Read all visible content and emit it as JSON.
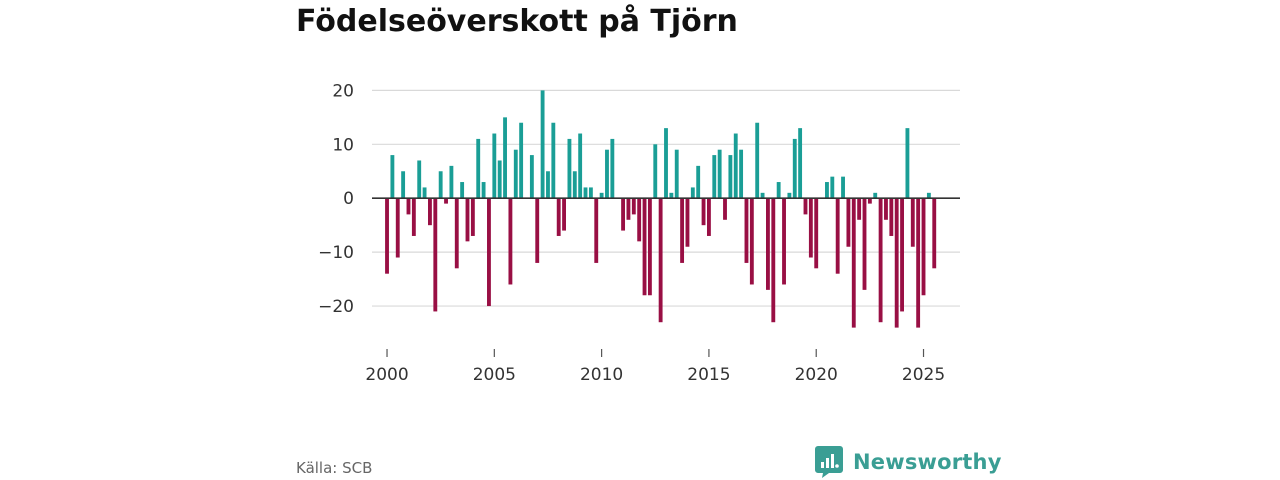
{
  "title": "Födelseöverskott på Tjörn",
  "source": "Källa: SCB",
  "brand": {
    "name": "Newsworthy",
    "icon": "newsworthy-logo-icon"
  },
  "colors": {
    "positive": "#1a9e96",
    "negative": "#990f44",
    "grid": "#d9d9d9",
    "zero_line": "#333333"
  },
  "chart_data": {
    "type": "bar",
    "title": "Födelseöverskott på Tjörn",
    "xlabel": "",
    "ylabel": "",
    "frequency": "quarterly",
    "x_start": 2000.0,
    "x_step": 0.25,
    "xlim": [
      1999.3,
      2026.7
    ],
    "ylim": [
      -25,
      21
    ],
    "yticks": [
      20,
      10,
      0,
      -10,
      -20
    ],
    "ytick_labels": [
      "20",
      "10",
      "0",
      "−10",
      "−20"
    ],
    "xticks": [
      2000,
      2005,
      2010,
      2015,
      2020,
      2025
    ],
    "xtick_labels": [
      "2000",
      "2005",
      "2010",
      "2015",
      "2020",
      "2025"
    ],
    "grid": true,
    "values": [
      -14,
      8,
      -11,
      5,
      -3,
      -7,
      7,
      2,
      -5,
      -21,
      5,
      -1,
      6,
      -13,
      3,
      -8,
      -7,
      11,
      3,
      -20,
      12,
      7,
      15,
      -16,
      9,
      14,
      0,
      8,
      -12,
      20,
      5,
      14,
      -7,
      -6,
      11,
      5,
      12,
      2,
      2,
      -12,
      1,
      9,
      11,
      0,
      -6,
      -4,
      -3,
      -8,
      -18,
      -18,
      10,
      -23,
      13,
      1,
      9,
      -12,
      -9,
      2,
      6,
      -5,
      -7,
      8,
      9,
      -4,
      8,
      12,
      9,
      -12,
      -16,
      14,
      1,
      -17,
      -23,
      3,
      -16,
      1,
      11,
      13,
      -3,
      -11,
      -13,
      0,
      3,
      4,
      -14,
      4,
      -9,
      -24,
      -4,
      -17,
      -1,
      1,
      -23,
      -4,
      -7,
      -24,
      -21,
      13,
      -9,
      -24,
      -18,
      1,
      -13
    ]
  }
}
